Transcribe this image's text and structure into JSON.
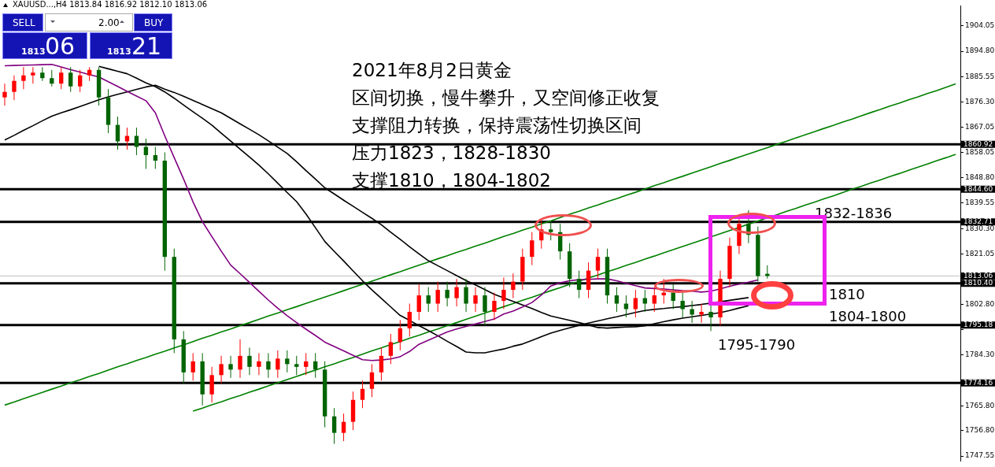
{
  "chart_data": {
    "type": "candlestick",
    "title": "2021年8月2日黄金",
    "annotations": [
      "XAUUSD...,H4  1813.84 1816.92 1812.10 1813.06",
      "区间切换，慢牛攀升，又空间修正收复",
      "支撑阻力转换，保持震荡性切换区间",
      "压力1823，1828-1830",
      "支撑1810，1804-1802",
      "1832-1836",
      "1810",
      "1804-1800",
      "1795-1790",
      "SELL",
      "2.00",
      "BUY",
      "1813",
      "06",
      "1813",
      "21"
    ],
    "categories": [
      null,
      null,
      null,
      null,
      null,
      null,
      null,
      null,
      null,
      null,
      null,
      null,
      null,
      null,
      null,
      null,
      null,
      null,
      null,
      null,
      null,
      null,
      null,
      null,
      null,
      null,
      null,
      null,
      null,
      null,
      null,
      null,
      null,
      null,
      null,
      null,
      null,
      null,
      null,
      null,
      null,
      null,
      null,
      null,
      null,
      null,
      null,
      null,
      null,
      null,
      null,
      null,
      null,
      null,
      null,
      null,
      null,
      null,
      null,
      null,
      null,
      null,
      null,
      null,
      null,
      null,
      null,
      null,
      null,
      null,
      null,
      null,
      null,
      null,
      null,
      null,
      null,
      null,
      null,
      null,
      null,
      null,
      null,
      null,
      null,
      null,
      null,
      null,
      null,
      null,
      null,
      null,
      null,
      null,
      null,
      null,
      null,
      null,
      null,
      null,
      null,
      null
    ],
    "ohlc": [
      [
        1878,
        1883,
        1875,
        1880
      ],
      [
        1880,
        1886,
        1877,
        1884
      ],
      [
        1884,
        1889,
        1881,
        1886
      ],
      [
        1886,
        1889,
        1883,
        1887
      ],
      [
        1887,
        1889,
        1884,
        1885
      ],
      [
        1885,
        1888,
        1882,
        1883
      ],
      [
        1883,
        1889,
        1881,
        1887
      ],
      [
        1887,
        1889,
        1880,
        1882
      ],
      [
        1882,
        1888,
        1880,
        1886
      ],
      [
        1886,
        1889,
        1884,
        1888
      ],
      [
        1888,
        1889,
        1875,
        1878
      ],
      [
        1878,
        1881,
        1865,
        1868
      ],
      [
        1868,
        1871,
        1859,
        1862
      ],
      [
        1862,
        1867,
        1859,
        1864
      ],
      [
        1864,
        1867,
        1857,
        1860
      ],
      [
        1860,
        1863,
        1852,
        1857
      ],
      [
        1857,
        1860,
        1852,
        1855
      ],
      [
        1855,
        1858,
        1815,
        1820
      ],
      [
        1820,
        1823,
        1785,
        1790
      ],
      [
        1790,
        1793,
        1774,
        1778
      ],
      [
        1778,
        1785,
        1775,
        1782
      ],
      [
        1782,
        1785,
        1766,
        1770
      ],
      [
        1770,
        1780,
        1767,
        1777
      ],
      [
        1777,
        1784,
        1774,
        1781
      ],
      [
        1781,
        1784,
        1776,
        1779
      ],
      [
        1779,
        1790,
        1776,
        1784
      ],
      [
        1784,
        1787,
        1777,
        1780
      ],
      [
        1780,
        1785,
        1777,
        1782
      ],
      [
        1782,
        1785,
        1776,
        1779
      ],
      [
        1779,
        1786,
        1776,
        1783
      ],
      [
        1783,
        1786,
        1778,
        1781
      ],
      [
        1781,
        1784,
        1777,
        1780
      ],
      [
        1780,
        1785,
        1777,
        1782
      ],
      [
        1782,
        1785,
        1776,
        1779
      ],
      [
        1779,
        1782,
        1758,
        1762
      ],
      [
        1762,
        1765,
        1752,
        1756
      ],
      [
        1756,
        1763,
        1753,
        1760
      ],
      [
        1760,
        1771,
        1757,
        1768
      ],
      [
        1768,
        1775,
        1765,
        1772
      ],
      [
        1772,
        1781,
        1769,
        1778
      ],
      [
        1778,
        1787,
        1775,
        1784
      ],
      [
        1784,
        1792,
        1781,
        1789
      ],
      [
        1789,
        1797,
        1786,
        1794
      ],
      [
        1794,
        1803,
        1791,
        1800
      ],
      [
        1800,
        1810,
        1797,
        1806
      ],
      [
        1806,
        1809,
        1800,
        1803
      ],
      [
        1803,
        1811,
        1800,
        1808
      ],
      [
        1808,
        1811,
        1802,
        1805
      ],
      [
        1805,
        1812,
        1802,
        1809
      ],
      [
        1809,
        1812,
        1800,
        1803
      ],
      [
        1803,
        1809,
        1800,
        1806
      ],
      [
        1806,
        1809,
        1795,
        1800
      ],
      [
        1800,
        1807,
        1797,
        1804
      ],
      [
        1804,
        1812.5,
        1801,
        1808
      ],
      [
        1808,
        1814,
        1805,
        1811
      ],
      [
        1811,
        1823,
        1808,
        1820
      ],
      [
        1820,
        1829,
        1817,
        1826
      ],
      [
        1826,
        1833,
        1823,
        1830
      ],
      [
        1830,
        1833,
        1826,
        1829
      ],
      [
        1829,
        1832,
        1819,
        1822
      ],
      [
        1822,
        1825,
        1809,
        1812
      ],
      [
        1812,
        1815,
        1805,
        1808
      ],
      [
        1808,
        1818,
        1805,
        1815
      ],
      [
        1815,
        1823,
        1812,
        1820
      ],
      [
        1820,
        1823,
        1803,
        1806
      ],
      [
        1806,
        1809,
        1800,
        1803
      ],
      [
        1803,
        1806,
        1798,
        1801
      ],
      [
        1801,
        1808,
        1798,
        1805
      ],
      [
        1805,
        1808,
        1800,
        1803
      ],
      [
        1803,
        1809,
        1800,
        1806
      ],
      [
        1806,
        1812,
        1803,
        1807
      ],
      [
        1807,
        1810,
        1801,
        1804
      ],
      [
        1804,
        1807,
        1798,
        1801
      ],
      [
        1801,
        1804,
        1796,
        1799
      ],
      [
        1799,
        1803,
        1796,
        1800
      ],
      [
        1800,
        1803,
        1793,
        1798
      ],
      [
        1798,
        1815,
        1795,
        1812
      ],
      [
        1812,
        1827,
        1809,
        1824
      ],
      [
        1824,
        1835,
        1821,
        1832
      ],
      [
        1832,
        1837,
        1825,
        1828
      ],
      [
        1828,
        1831,
        1811,
        1813
      ],
      [
        1813.84,
        1816.92,
        1812.1,
        1813.06
      ],
      null,
      null,
      null,
      null,
      null,
      null,
      null,
      null,
      null,
      null,
      null,
      null,
      null,
      null,
      null,
      null,
      null,
      null,
      null,
      null
    ],
    "colors": [
      "#ff0000",
      "#ff0000",
      "#ff0000",
      "#ff0000",
      "#006400",
      "#006400",
      "#ff0000",
      "#006400",
      "#ff0000",
      "#ff0000",
      "#006400",
      "#006400",
      "#006400",
      "#ff0000",
      "#006400",
      "#006400",
      "#006400",
      "#006400",
      "#006400",
      "#006400",
      "#ff0000",
      "#006400",
      "#ff0000",
      "#ff0000",
      "#006400",
      "#ff0000",
      "#006400",
      "#ff0000",
      "#006400",
      "#ff0000",
      "#006400",
      "#006400",
      "#ff0000",
      "#006400",
      "#006400",
      "#006400",
      "#ff0000",
      "#ff0000",
      "#ff0000",
      "#ff0000",
      "#ff0000",
      "#ff0000",
      "#ff0000",
      "#ff0000",
      "#ff0000",
      "#006400",
      "#ff0000",
      "#006400",
      "#ff0000",
      "#006400",
      "#ff0000",
      "#006400",
      "#ff0000",
      "#ff0000",
      "#ff0000",
      "#ff0000",
      "#ff0000",
      "#ff0000",
      "#006400",
      "#006400",
      "#006400",
      "#006400",
      "#ff0000",
      "#ff0000",
      "#006400",
      "#006400",
      "#006400",
      "#ff0000",
      "#006400",
      "#ff0000",
      "#ff0000",
      "#006400",
      "#006400",
      "#006400",
      "#ff0000",
      "#006400",
      "#ff0000",
      "#ff0000",
      "#ff0000",
      "#006400",
      "#006400",
      "#006400",
      null,
      null,
      null,
      null,
      null,
      null,
      null,
      null,
      null,
      null,
      null,
      null,
      null,
      null,
      null,
      null,
      null,
      null,
      null,
      null
    ],
    "series": [
      {
        "type": "line",
        "color": "#800080",
        "values": [
          1889.5,
          1889.6,
          1889.7,
          1889.8,
          1889.9,
          1890,
          1889.1,
          1888.1,
          1887.2,
          1886.3,
          1885.4,
          1883.7,
          1882,
          1880.2,
          1878.5,
          1876.8,
          1872.4,
          1864,
          1856.1,
          1848.3,
          1840,
          1832.8,
          1827.4,
          1822.1,
          1817,
          1813.9,
          1810.7,
          1807.5,
          1804.3,
          1801.3,
          1798.6,
          1796.1,
          1793.7,
          1791.4,
          1789,
          1787.4,
          1785.8,
          1784.2,
          1782.6,
          1782.3,
          1782.5,
          1782.9,
          1783.7,
          1785.6,
          1788.2,
          1789.7,
          1791.2,
          1792.7,
          1793.8,
          1794.7,
          1795.6,
          1796.5,
          1797.4,
          1799.2,
          1800.3,
          1801.8,
          1803.4,
          1806.1,
          1809.4,
          1810.6,
          1811.3,
          1811.7,
          1811.8,
          1812,
          1812,
          1811.3,
          1810.4,
          1809.5,
          1808.7,
          1808.5,
          1808.3,
          1808,
          1807.7,
          1807.5,
          1807.2,
          1807.5,
          1808.4,
          1809.3,
          1810.1,
          1810.8,
          1811.6,
          null,
          null,
          null,
          null,
          null,
          null,
          null,
          null,
          null,
          null,
          null,
          null,
          null,
          null,
          null,
          null,
          null,
          null,
          null,
          null,
          null
        ]
      },
      {
        "type": "line",
        "color": "#000000",
        "values": [
          1862.5,
          1864.2,
          1866,
          1867.7,
          1869.5,
          1871.2,
          1872.4,
          1873.5,
          1874.7,
          1875.9,
          1877.1,
          1878.2,
          1879.1,
          1880,
          1880.9,
          1881.8,
          1882.4,
          1881,
          1879.8,
          1878.4,
          1876.9,
          1875.4,
          1873.9,
          1872.4,
          1870.4,
          1868.4,
          1866.4,
          1864.4,
          1862.2,
          1859.9,
          1857.6,
          1854.6,
          1851.4,
          1848.3,
          1845.1,
          1842.9,
          1840.6,
          1838.4,
          1836.2,
          1834,
          1831.7,
          1829,
          1826.4,
          1823.7,
          1821.1,
          1818.6,
          1816.8,
          1815,
          1813.2,
          1811.4,
          1809.8,
          1808.1,
          1806.4,
          1805.1,
          1803.8,
          1802.5,
          1801.2,
          1799.8,
          1798.5,
          1797.7,
          1796.9,
          1796.1,
          1795.2,
          1794.3,
          1794.1,
          1794.3,
          1794.5,
          1794.6,
          1794.9,
          1795.7,
          1796.4,
          1797.1,
          1797.7,
          1798.2,
          1798.7,
          1799.2,
          1799.7,
          1800.5,
          1801.4,
          1802.2,
          null,
          null,
          null,
          null,
          null,
          null,
          null,
          null,
          null,
          null,
          null,
          null,
          null,
          null,
          null,
          null,
          null,
          null,
          null,
          null,
          null,
          null
        ]
      },
      {
        "type": "line",
        "color": "#000000",
        "values": [
          null,
          null,
          null,
          null,
          null,
          null,
          null,
          null,
          null,
          null,
          1889.3,
          1888.4,
          1887.5,
          1886.6,
          1885,
          1883.3,
          1881.9,
          1880,
          1877.7,
          1875.2,
          1872.8,
          1870.4,
          1867.9,
          1865,
          1862.1,
          1859.2,
          1856.3,
          1853.4,
          1850.2,
          1846.8,
          1843.4,
          1840.1,
          1835.6,
          1830.6,
          1825.6,
          1822,
          1818.5,
          1814.9,
          1811.3,
          1808,
          1804.9,
          1801.8,
          1798.7,
          1796.9,
          1795,
          1793.2,
          1791.3,
          1789.3,
          1787.4,
          1785.4,
          1785.1,
          1785.1,
          1785.8,
          1786.5,
          1787.5,
          1788.3,
          1789.6,
          1791,
          1792.3,
          1793.3,
          1794.2,
          1795.1,
          1795.9,
          1796.7,
          1797.5,
          1798.2,
          1799,
          1799.8,
          1800.5,
          1800.9,
          1801.2,
          1801.6,
          1801.9,
          1802.3,
          1802.7,
          1803.2,
          1803.7,
          1804.2,
          1804.7,
          1805.2,
          null,
          null,
          null,
          null,
          null,
          null,
          null,
          null,
          null,
          null,
          null,
          null,
          null,
          null,
          null,
          null,
          null,
          null,
          null,
          null,
          null,
          null
        ]
      },
      {
        "type": "line",
        "color": "#008000",
        "values": [
          1766.1,
          1767.2,
          1768.4,
          1769.6,
          1770.7,
          1771.9,
          1773,
          1774.2,
          1775.3,
          1776.5,
          1777.6,
          1778.8,
          1780,
          1781.1,
          1782.3,
          1783.4,
          1784.6,
          1785.7,
          1786.9,
          1788,
          1789.2,
          1790.4,
          1791.5,
          1792.7,
          1793.8,
          1795,
          1796.1,
          1797.3,
          1798.5,
          1799.6,
          1800.8,
          1801.9,
          1803.1,
          1804.2,
          1805.4,
          1806.5,
          1807.7,
          1808.9,
          1810,
          1811.2,
          1812.3,
          1813.5,
          1814.6,
          1815.8,
          1817,
          1818.1,
          1819.3,
          1820.4,
          1821.6,
          1822.7,
          1823.9,
          1825,
          1826.2,
          1827.4,
          1828.5,
          1829.7,
          1830.8,
          1832,
          1833.1,
          1834.3,
          1835.5,
          1836.6,
          1837.8,
          1838.9,
          1840.1,
          1841.2,
          1842.4,
          1843.5,
          1844.7,
          1845.9,
          1847,
          1848.2,
          1849.3,
          1850.5,
          1851.6,
          1852.8,
          1854,
          1855.1,
          1856.3,
          1857.4,
          1858.6,
          1859.7,
          1860.9,
          1862,
          1863.2,
          1864.4,
          1865.5,
          1866.7,
          1867.8,
          1869,
          1870.1,
          1871.3,
          1872.5,
          1873.6,
          1874.8,
          1875.9,
          1877.1,
          1878.2,
          1879.4,
          1880.5,
          1881.7,
          1882.9
        ]
      },
      {
        "type": "line",
        "color": "#008000",
        "values": [
          null,
          null,
          null,
          null,
          null,
          null,
          null,
          null,
          null,
          null,
          null,
          null,
          null,
          null,
          null,
          null,
          null,
          null,
          null,
          null,
          1763.9,
          1765,
          1766.2,
          1767.3,
          1768.5,
          1769.6,
          1770.8,
          1771.9,
          1773.1,
          1774.2,
          1775.4,
          1776.5,
          1777.7,
          1778.8,
          1780,
          1781.1,
          1782.3,
          1783.4,
          1784.6,
          1785.8,
          1786.9,
          1788.1,
          1789.2,
          1790.4,
          1791.5,
          1792.7,
          1793.8,
          1795,
          1796.1,
          1797.3,
          1798.4,
          1799.6,
          1800.7,
          1801.9,
          1803,
          1804.2,
          1805.3,
          1806.5,
          1807.7,
          1808.8,
          1810,
          1811.1,
          1812.3,
          1813.4,
          1814.6,
          1815.7,
          1816.9,
          1818,
          1819.2,
          1820.3,
          1821.5,
          1822.6,
          1823.8,
          1824.9,
          1826.1,
          1827.3,
          1828.4,
          1829.6,
          1830.7,
          1831.9,
          1833,
          1834.2,
          1835.3,
          1836.5,
          1837.6,
          1838.8,
          1839.9,
          1841.1,
          1842.2,
          1843.4,
          1844.6,
          1845.7,
          1846.9,
          1848,
          1849.2,
          1850.3,
          1851.5,
          1852.6,
          1853.8,
          1855,
          1856.1,
          1857.3
        ]
      }
    ],
    "ylim": [
      1745.7,
      1911.3
    ],
    "yticks": [
      {
        "value": 1904.05,
        "label": "1904.05"
      },
      {
        "value": 1894.8,
        "label": "1894.80"
      },
      {
        "value": 1885.55,
        "label": "1885.55"
      },
      {
        "value": 1876.3,
        "label": "1876.30"
      },
      {
        "value": 1867.05,
        "label": "1867.05"
      },
      {
        "value": 1858.05,
        "label": "1858.05"
      },
      {
        "value": 1848.8,
        "label": "1848.80"
      },
      {
        "value": 1839.55,
        "label": "1839.55"
      },
      {
        "value": 1830.3,
        "label": "1830.30"
      },
      {
        "value": 1821.05,
        "label": "1821.05"
      },
      {
        "value": 1802.8,
        "label": "1802.80"
      },
      {
        "value": 1793.55,
        "label": null
      },
      {
        "value": 1784.3,
        "label": "1784.30"
      },
      {
        "value": 1765.8,
        "label": "1765.80"
      },
      {
        "value": 1756.8,
        "label": "1756.80"
      },
      {
        "value": 1747.55,
        "label": "1747.55"
      }
    ],
    "ref_lines": [
      {
        "axis": "y",
        "value": 1860.92,
        "label": "1860.92",
        "color": "#000000"
      },
      {
        "axis": "y",
        "value": 1844.6,
        "label": "1844.60",
        "color": "#000000"
      },
      {
        "axis": "y",
        "value": 1832.71,
        "label": "1832.71",
        "color": "#000000"
      },
      {
        "axis": "y",
        "value": 1813.06,
        "label": "1813.06",
        "color": "#c0c0c0"
      },
      {
        "axis": "y",
        "value": 1810.4,
        "label": "1810.40",
        "color": "#000000"
      },
      {
        "axis": "y",
        "value": 1795.18,
        "label": "1795.18",
        "color": "#000000"
      },
      {
        "axis": "y",
        "value": 1774.16,
        "label": "1774.16",
        "color": "#000000"
      }
    ],
    "tick_labels": "y",
    "legend": false,
    "grid": false
  }
}
